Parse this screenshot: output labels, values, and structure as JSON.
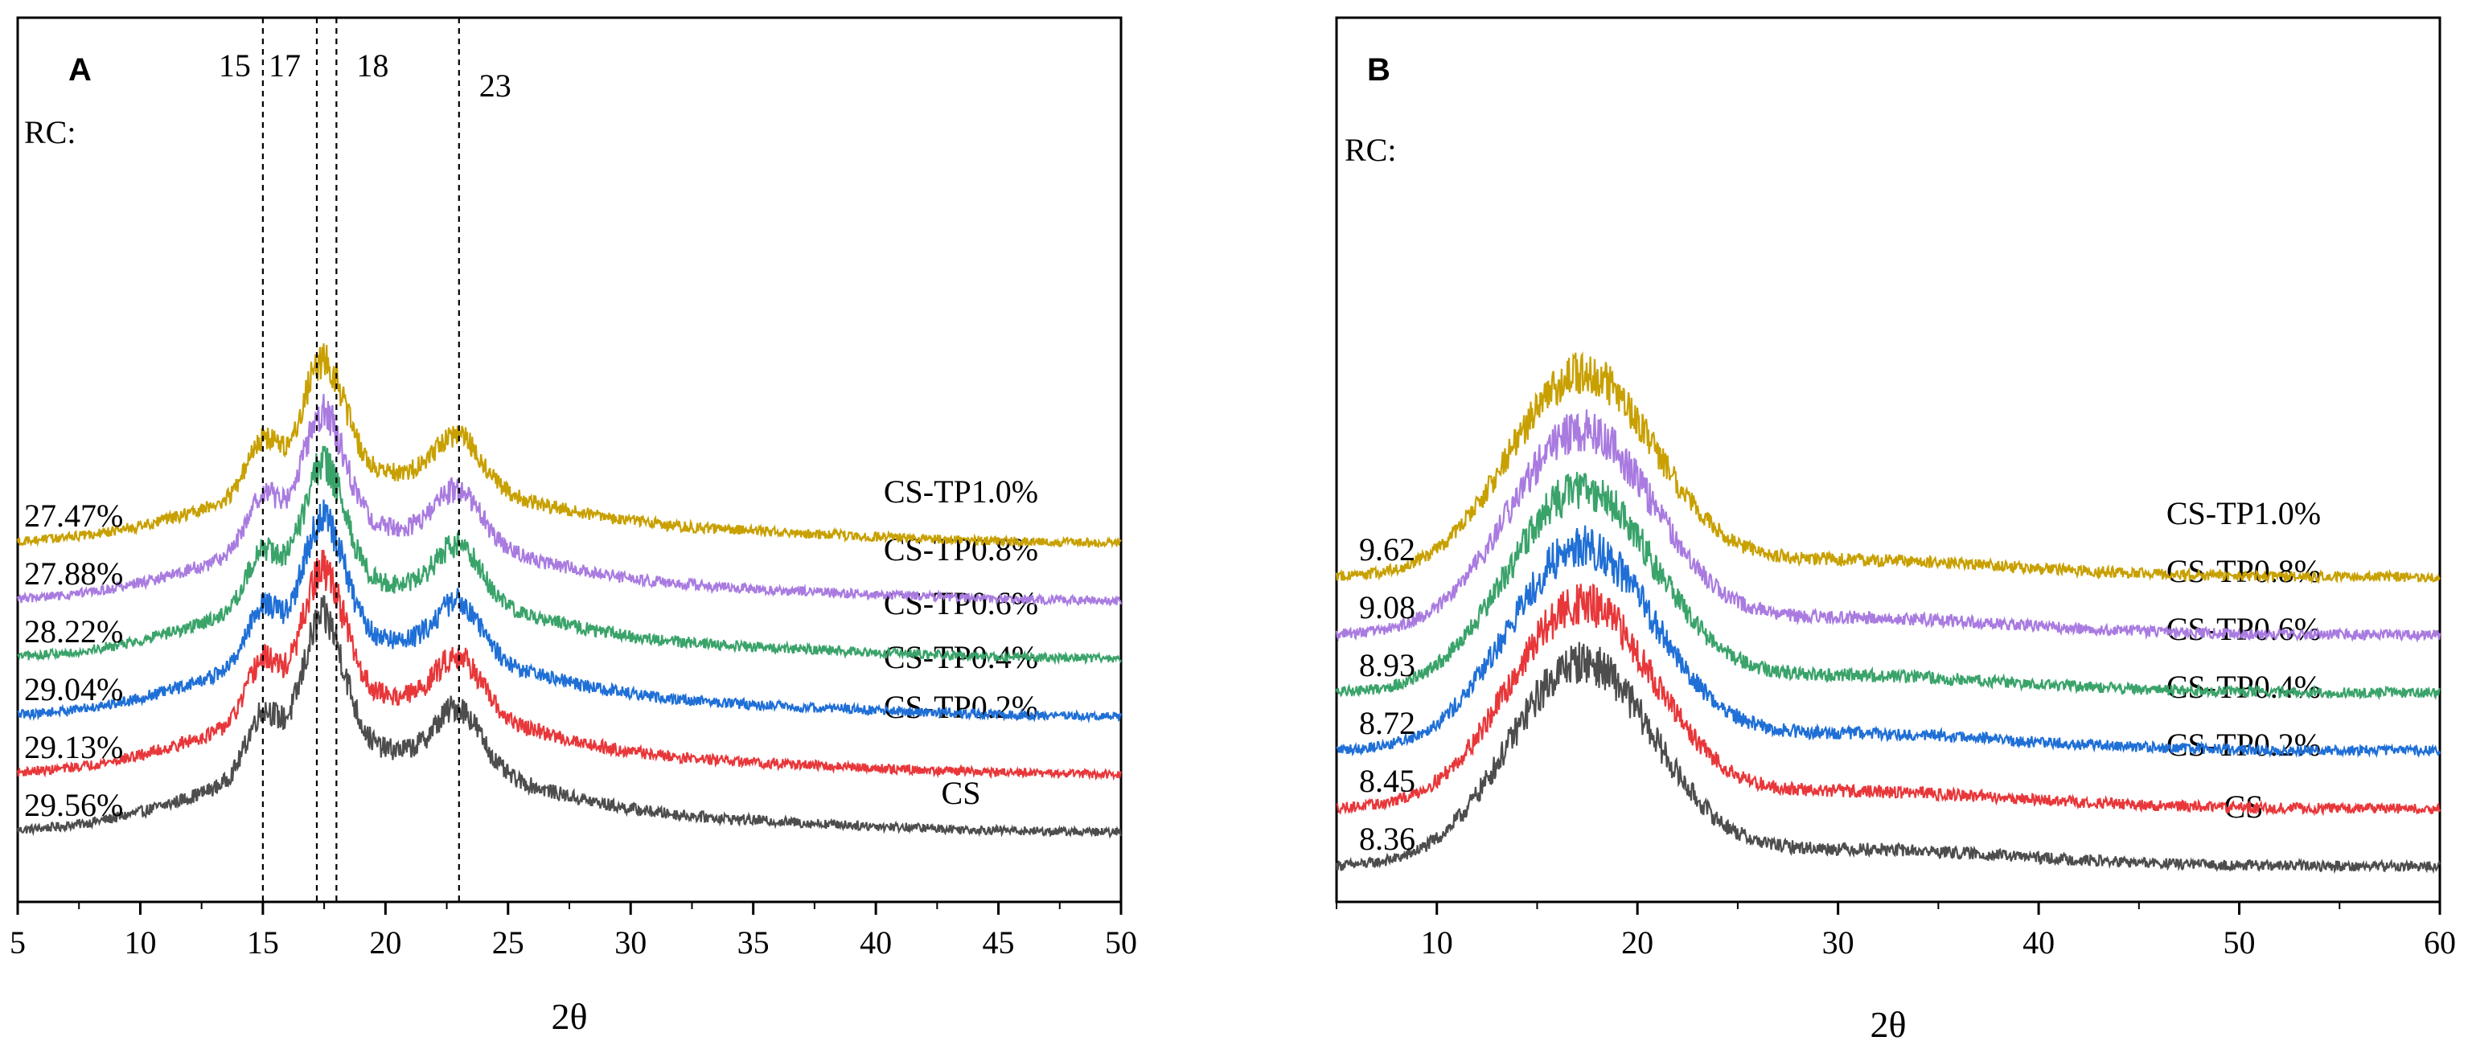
{
  "chart_data": [
    {
      "panel": "A",
      "type": "line",
      "title": "",
      "xlabel": "2θ",
      "ylabel": "",
      "xlim": [
        5,
        50
      ],
      "xticks": [
        5,
        10,
        15,
        20,
        25,
        30,
        35,
        40,
        45,
        50
      ],
      "grid": false,
      "legend": "none",
      "peak_markers": [
        15,
        17.2,
        18,
        23
      ],
      "peak_labels": [
        {
          "text": "15",
          "x": 15
        },
        {
          "text": "17",
          "x": 17.2
        },
        {
          "text": "18",
          "x": 18
        },
        {
          "text": "23",
          "x": 23
        }
      ],
      "rc_title": "RC:",
      "peak_profile": [
        {
          "center": 15.0,
          "width": 0.65,
          "height": 0.42
        },
        {
          "center": 17.2,
          "width": 0.75,
          "height": 0.72
        },
        {
          "center": 18.0,
          "width": 0.75,
          "height": 0.38
        },
        {
          "center": 23.0,
          "width": 0.9,
          "height": 0.4
        },
        {
          "center": 19.0,
          "width": 5.5,
          "height": 0.55
        }
      ],
      "series": [
        {
          "name": "CS",
          "rc": "29.56%",
          "color": "#4d4d4d",
          "baseline": 0.0,
          "peak_scale": 1.0
        },
        {
          "name": "CS-TP0.2%",
          "rc": "29.13%",
          "color": "#e8373a",
          "baseline": 1.0,
          "peak_scale": 0.95
        },
        {
          "name": "CS-TP0.4%",
          "rc": "29.04%",
          "color": "#1f6fd6",
          "baseline": 2.0,
          "peak_scale": 0.92
        },
        {
          "name": "CS-TP0.6%",
          "rc": "28.22%",
          "color": "#3aa36a",
          "baseline": 3.0,
          "peak_scale": 0.9
        },
        {
          "name": "CS-TP0.8%",
          "rc": "27.88%",
          "color": "#a97be0",
          "baseline": 4.0,
          "peak_scale": 0.88
        },
        {
          "name": "CS-TP1.0%",
          "rc": "27.47%",
          "color": "#c8a000",
          "baseline": 5.0,
          "peak_scale": 0.85
        }
      ]
    },
    {
      "panel": "B",
      "type": "line",
      "title": "",
      "xlabel": "2θ",
      "ylabel": "",
      "xlim": [
        5,
        60
      ],
      "xticks": [
        10,
        20,
        30,
        40,
        50,
        60
      ],
      "grid": false,
      "legend": "none",
      "rc_title": "RC:",
      "peak_profile": [
        {
          "center": 17.2,
          "width": 3.6,
          "height": 1.15
        }
      ],
      "series": [
        {
          "name": "CS",
          "rc": "8.36",
          "color": "#4d4d4d",
          "baseline": 0.0,
          "peak_scale": 1.0
        },
        {
          "name": "CS-TP0.2%",
          "rc": "8.45",
          "color": "#e8373a",
          "baseline": 1.0,
          "peak_scale": 1.0
        },
        {
          "name": "CS-TP0.4%",
          "rc": "8.72",
          "color": "#1f6fd6",
          "baseline": 2.0,
          "peak_scale": 1.0
        },
        {
          "name": "CS-TP0.6%",
          "rc": "8.93",
          "color": "#3aa36a",
          "baseline": 3.0,
          "peak_scale": 1.0
        },
        {
          "name": "CS-TP0.8%",
          "rc": "9.08",
          "color": "#a97be0",
          "baseline": 4.0,
          "peak_scale": 1.0
        },
        {
          "name": "CS-TP1.0%",
          "rc": "9.62",
          "color": "#c8a000",
          "baseline": 5.0,
          "peak_scale": 1.0
        }
      ]
    }
  ]
}
